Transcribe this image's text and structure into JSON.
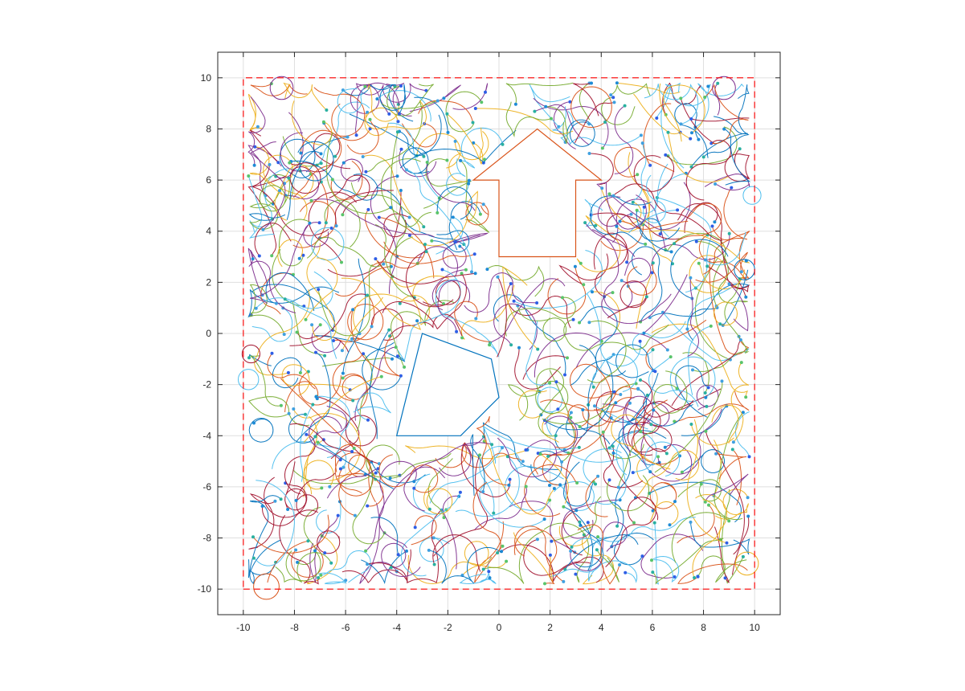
{
  "chart_data": {
    "type": "line",
    "title": "",
    "xlabel": "",
    "ylabel": "",
    "xlim": [
      -11,
      11
    ],
    "ylim": [
      -11,
      11
    ],
    "grid": true,
    "xticks": [
      -10,
      -8,
      -6,
      -4,
      -2,
      0,
      2,
      4,
      6,
      8,
      10
    ],
    "yticks": [
      -10,
      -8,
      -6,
      -4,
      -2,
      0,
      2,
      4,
      6,
      8,
      10
    ],
    "xtick_labels": [
      "-10",
      "-8",
      "-6",
      "-4",
      "-2",
      "0",
      "2",
      "4",
      "6",
      "8",
      "10"
    ],
    "ytick_labels": [
      "-10",
      "-8",
      "-6",
      "-4",
      "-2",
      "0",
      "2",
      "4",
      "6",
      "8",
      "10"
    ],
    "boundary": {
      "style": "dashed",
      "color": "#ff0000",
      "x": [
        -10,
        10,
        10,
        -10,
        -10
      ],
      "y": [
        -10,
        -10,
        10,
        10,
        -10
      ]
    },
    "obstacles": [
      {
        "shape": "polygon",
        "color": "#0072bd",
        "x": [
          -4,
          -3,
          -0.3,
          0,
          -1.5,
          -4
        ],
        "y": [
          -4,
          0,
          -1,
          -2.5,
          -4,
          -4
        ]
      },
      {
        "shape": "arrow",
        "color": "#d95319",
        "x": [
          0,
          0,
          -1,
          1.5,
          4,
          3,
          3,
          0
        ],
        "y": [
          3,
          6,
          6,
          8,
          6,
          6,
          3,
          3
        ]
      }
    ],
    "trajectories": {
      "description_only": false,
      "region_x": [
        -9.8,
        9.8
      ],
      "region_y": [
        -9.8,
        9.8
      ],
      "series_colors": [
        "#0072bd",
        "#d95319",
        "#edb120",
        "#7e2f8e",
        "#77ac30",
        "#4dbeee",
        "#a2142f"
      ],
      "marker_colors": [
        "#2e5ee6",
        "#1e8bd6",
        "#29b0a0",
        "#59c46a",
        "#3fa0e0"
      ]
    }
  }
}
